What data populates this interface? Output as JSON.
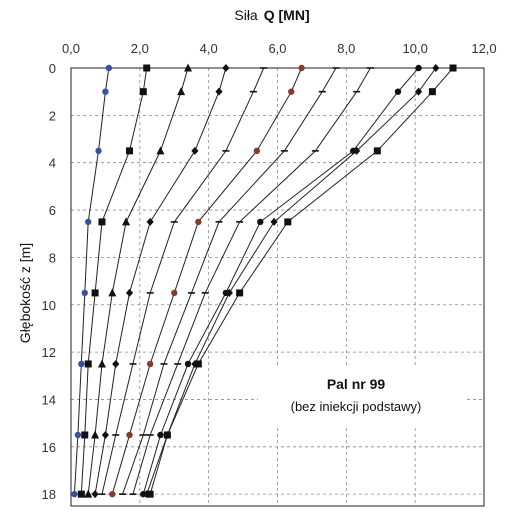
{
  "chart_data": {
    "type": "line",
    "orientation": "depth-profile",
    "xlabel_prefix": "Siła",
    "xlabel_bold": "Q [MN]",
    "ylabel": "Głębokość  z [m]",
    "xlim": [
      0,
      12
    ],
    "ylim": [
      18.5,
      0
    ],
    "x_axis_position": "top",
    "x_ticks": [
      "0,0",
      "2,0",
      "4,0",
      "6,0",
      "8,0",
      "10,0",
      "12,0"
    ],
    "x_tick_values": [
      0,
      2,
      4,
      6,
      8,
      10,
      12
    ],
    "y_ticks": [
      "0",
      "2",
      "4",
      "6",
      "8",
      "10",
      "12",
      "14",
      "16",
      "18"
    ],
    "y_tick_values": [
      0,
      2,
      4,
      6,
      8,
      10,
      12,
      14,
      16,
      18
    ],
    "grid": true,
    "annotation": {
      "title": "Pal nr 99",
      "subtitle": "(bez iniekcji podstawy)"
    },
    "depths": [
      0,
      1,
      3.5,
      6.5,
      9.5,
      12.5,
      15.5,
      18
    ],
    "series": [
      {
        "marker": "circle",
        "color": "#3a4fa0",
        "values": [
          1.1,
          1.0,
          0.8,
          0.5,
          0.4,
          0.3,
          0.2,
          0.1
        ]
      },
      {
        "marker": "square",
        "color": "#111111",
        "values": [
          2.2,
          2.1,
          1.7,
          0.9,
          0.7,
          0.5,
          0.4,
          0.3
        ]
      },
      {
        "marker": "triangle",
        "color": "#111111",
        "values": [
          3.4,
          3.2,
          2.6,
          1.6,
          1.2,
          0.9,
          0.7,
          0.5
        ]
      },
      {
        "marker": "diamond",
        "color": "#111111",
        "values": [
          4.5,
          4.3,
          3.6,
          2.3,
          1.7,
          1.3,
          1.0,
          0.7
        ]
      },
      {
        "marker": "dash",
        "color": "#111111",
        "values": [
          5.6,
          5.3,
          4.5,
          3.0,
          2.3,
          1.8,
          1.3,
          0.9
        ]
      },
      {
        "marker": "circle",
        "color": "#8a3a2a",
        "values": [
          6.7,
          6.4,
          5.4,
          3.7,
          3.0,
          2.3,
          1.7,
          1.2
        ]
      },
      {
        "marker": "dash",
        "color": "#111111",
        "values": [
          7.7,
          7.3,
          6.2,
          4.3,
          3.5,
          2.7,
          2.1,
          1.5
        ]
      },
      {
        "marker": "dash",
        "color": "#111111",
        "values": [
          8.7,
          8.3,
          7.1,
          4.9,
          3.9,
          3.1,
          2.3,
          1.8
        ]
      },
      {
        "marker": "circle",
        "color": "#111111",
        "values": [
          10.1,
          9.5,
          8.2,
          5.5,
          4.5,
          3.4,
          2.6,
          2.1
        ]
      },
      {
        "marker": "diamond",
        "color": "#111111",
        "values": [
          10.6,
          10.1,
          8.3,
          5.9,
          4.6,
          3.6,
          2.8,
          2.2
        ]
      },
      {
        "marker": "square",
        "color": "#111111",
        "values": [
          11.1,
          10.5,
          8.9,
          6.3,
          4.9,
          3.7,
          2.8,
          2.3
        ]
      }
    ]
  }
}
